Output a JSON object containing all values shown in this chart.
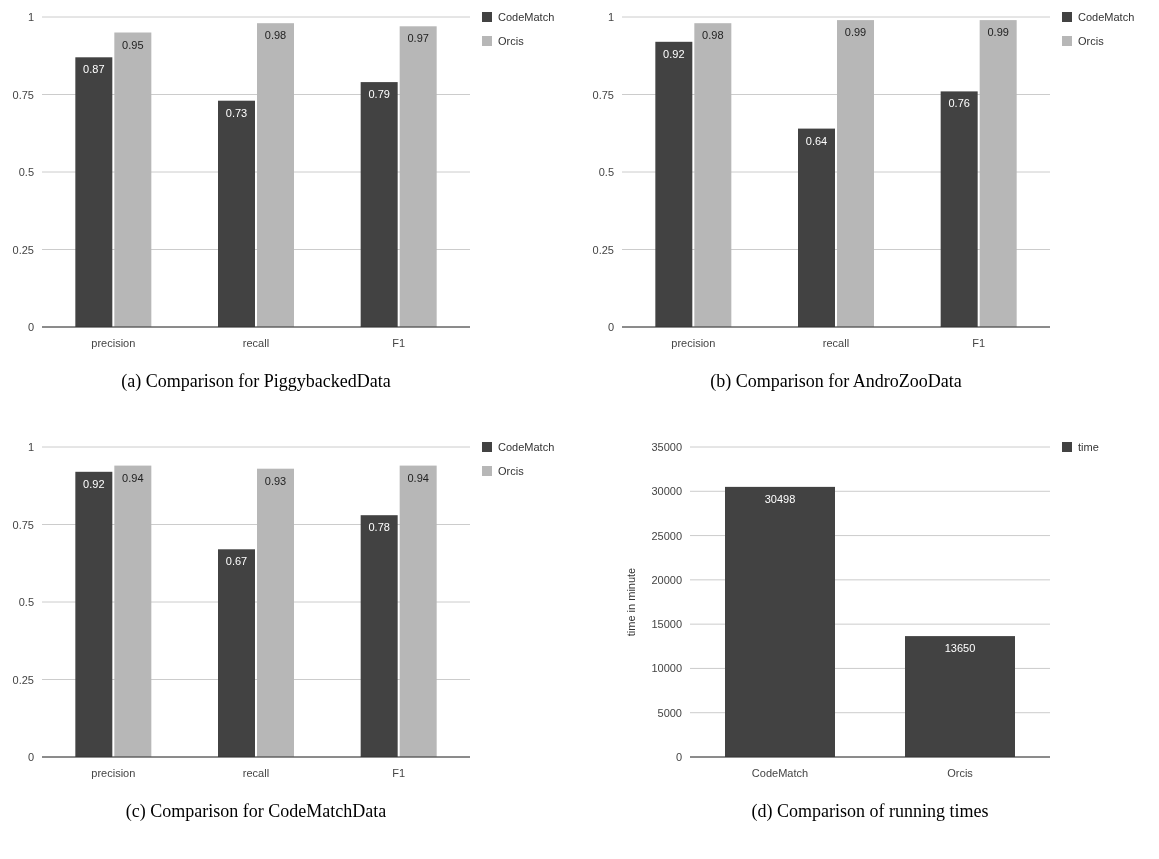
{
  "chart_data": [
    {
      "type": "bar",
      "title": "(a) Comparison for PiggybackedData",
      "categories": [
        "precision",
        "recall",
        "F1"
      ],
      "series": [
        {
          "name": "CodeMatch",
          "color": "#424242",
          "values": [
            0.87,
            0.73,
            0.79
          ]
        },
        {
          "name": "Orcis",
          "color": "#b7b7b7",
          "values": [
            0.95,
            0.98,
            0.97
          ]
        }
      ],
      "ylim": [
        0,
        1
      ],
      "yticks": [
        0,
        0.25,
        0.5,
        0.75,
        1
      ],
      "grid": "y",
      "legend": "top right",
      "data_labels": true
    },
    {
      "type": "bar",
      "title": "(b) Comparison for AndroZooData",
      "categories": [
        "precision",
        "recall",
        "F1"
      ],
      "series": [
        {
          "name": "CodeMatch",
          "color": "#424242",
          "values": [
            0.92,
            0.64,
            0.76
          ]
        },
        {
          "name": "Orcis",
          "color": "#b7b7b7",
          "values": [
            0.98,
            0.99,
            0.99
          ]
        }
      ],
      "ylim": [
        0,
        1
      ],
      "yticks": [
        0,
        0.25,
        0.5,
        0.75,
        1
      ],
      "grid": "y",
      "legend": "top right",
      "data_labels": true
    },
    {
      "type": "bar",
      "title": "(c) Comparison for CodeMatchData",
      "categories": [
        "precision",
        "recall",
        "F1"
      ],
      "series": [
        {
          "name": "CodeMatch",
          "color": "#424242",
          "values": [
            0.92,
            0.67,
            0.78
          ]
        },
        {
          "name": "Orcis",
          "color": "#b7b7b7",
          "values": [
            0.94,
            0.93,
            0.94
          ]
        }
      ],
      "ylim": [
        0,
        1
      ],
      "yticks": [
        0,
        0.25,
        0.5,
        0.75,
        1
      ],
      "grid": "y",
      "legend": "top right",
      "data_labels": true
    },
    {
      "type": "bar",
      "title": "(d) Comparison of running times",
      "ylabel": "time in minute",
      "categories": [
        "CodeMatch",
        "Orcis"
      ],
      "series": [
        {
          "name": "time",
          "color": "#424242",
          "values": [
            30498,
            13650
          ]
        }
      ],
      "ylim": [
        0,
        35000
      ],
      "yticks": [
        0,
        5000,
        10000,
        15000,
        20000,
        25000,
        30000,
        35000
      ],
      "grid": "y",
      "legend": "top right",
      "data_labels": true
    }
  ]
}
